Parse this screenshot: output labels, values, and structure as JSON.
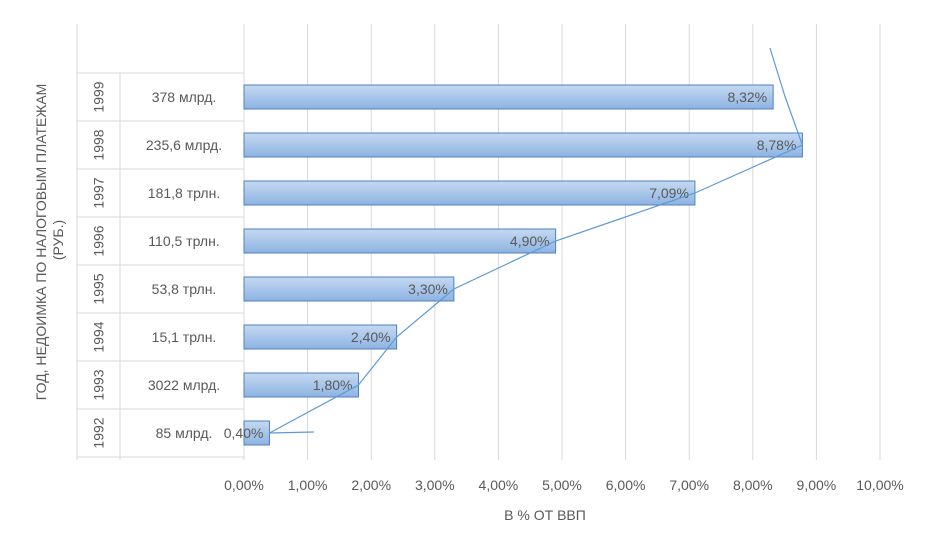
{
  "chart_data": {
    "type": "bar",
    "orientation": "horizontal",
    "title": "",
    "xlabel": "В % ОТ ВВП",
    "ylabel": "ГОД, НЕДОИМКА ПО НАЛОГОВЫМ ПЛАТЕЖАМ (РУБ.)",
    "categories": [
      {
        "year": "1992",
        "amount": "85 млрд."
      },
      {
        "year": "1993",
        "amount": "3022 млрд."
      },
      {
        "year": "1994",
        "amount": "15,1 трлн."
      },
      {
        "year": "1995",
        "amount": "53,8 трлн."
      },
      {
        "year": "1996",
        "amount": "110,5 трлн."
      },
      {
        "year": "1997",
        "amount": "181,8 трлн."
      },
      {
        "year": "1998",
        "amount": "235,6 млрд."
      },
      {
        "year": "1999",
        "amount": "378 млрд."
      }
    ],
    "values": [
      0.4,
      1.8,
      2.4,
      3.3,
      4.9,
      7.09,
      8.78,
      8.32
    ],
    "data_labels": [
      "0,40%",
      "1,80%",
      "2,40%",
      "3,30%",
      "4,90%",
      "7,09%",
      "8,78%",
      "8,32%"
    ],
    "xlim": [
      0,
      10
    ],
    "x_ticks": [
      "0,00%",
      "1,00%",
      "2,00%",
      "3,00%",
      "4,00%",
      "5,00%",
      "6,00%",
      "7,00%",
      "8,00%",
      "9,00%",
      "10,00%"
    ],
    "grid": true,
    "trend_line": true,
    "colors": {
      "bar_fill_top": "#c5d9f1",
      "bar_fill_bottom": "#8db3e2",
      "bar_stroke": "#4f81bd",
      "trend_line": "#5b9bd5",
      "grid": "#d9d9d9",
      "text": "#595959"
    }
  }
}
